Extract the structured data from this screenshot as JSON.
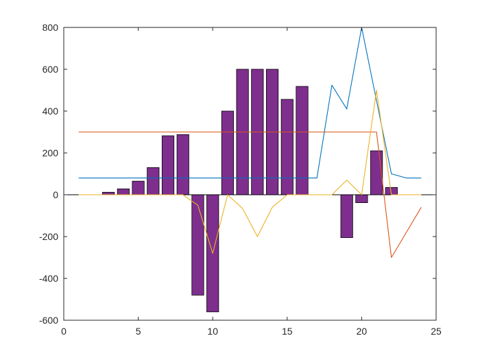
{
  "chart_data": {
    "type": "bar",
    "title": "",
    "xlabel": "",
    "ylabel": "",
    "xlim": [
      0,
      25
    ],
    "ylim": [
      -600,
      800
    ],
    "xticks": [
      0,
      5,
      10,
      15,
      20,
      25
    ],
    "yticks": [
      -600,
      -400,
      -200,
      0,
      200,
      400,
      600,
      800
    ],
    "xtick_labels": [
      "0",
      "5",
      "10",
      "15",
      "20",
      "25"
    ],
    "ytick_labels": [
      "-600",
      "-400",
      "-200",
      "0",
      "200",
      "400",
      "600",
      "800"
    ],
    "grid": false,
    "legend": "none",
    "bars": {
      "color": "#7E2F8E",
      "x": [
        3,
        4,
        5,
        6,
        7,
        8,
        9,
        10,
        11,
        12,
        13,
        14,
        15,
        16,
        19,
        20,
        21,
        22
      ],
      "values": [
        12,
        28,
        65,
        130,
        282,
        288,
        -480,
        -560,
        400,
        600,
        600,
        600,
        456,
        518,
        -205,
        -38,
        210,
        35
      ]
    },
    "series": [
      {
        "color": "#0072BD",
        "x": [
          1,
          2,
          3,
          4,
          5,
          6,
          7,
          8,
          9,
          10,
          11,
          12,
          13,
          14,
          15,
          16,
          17,
          18,
          19,
          20,
          21,
          22,
          23,
          24
        ],
        "y": [
          80,
          80,
          80,
          80,
          80,
          80,
          80,
          80,
          80,
          80,
          80,
          80,
          80,
          80,
          80,
          80,
          80,
          524,
          410,
          800,
          450,
          100,
          80,
          80
        ]
      },
      {
        "color": "#D95319",
        "x": [
          1,
          2,
          3,
          4,
          5,
          6,
          7,
          8,
          9,
          10,
          11,
          12,
          13,
          14,
          15,
          16,
          17,
          18,
          19,
          20,
          21,
          22,
          23,
          24
        ],
        "y": [
          300,
          300,
          300,
          300,
          300,
          300,
          300,
          300,
          300,
          300,
          300,
          300,
          300,
          300,
          300,
          300,
          300,
          300,
          300,
          300,
          300,
          -300,
          -180,
          -60
        ]
      },
      {
        "color": "#EDB120",
        "x": [
          1,
          2,
          3,
          4,
          5,
          6,
          7,
          8,
          9,
          10,
          11,
          12,
          13,
          14,
          15,
          16,
          17,
          18,
          19,
          20,
          21,
          22,
          23,
          24
        ],
        "y": [
          0,
          0,
          0,
          0,
          0,
          0,
          0,
          0,
          -50,
          -280,
          0,
          -65,
          -200,
          -60,
          0,
          0,
          0,
          0,
          70,
          0,
          500,
          0,
          0,
          0
        ]
      }
    ]
  }
}
